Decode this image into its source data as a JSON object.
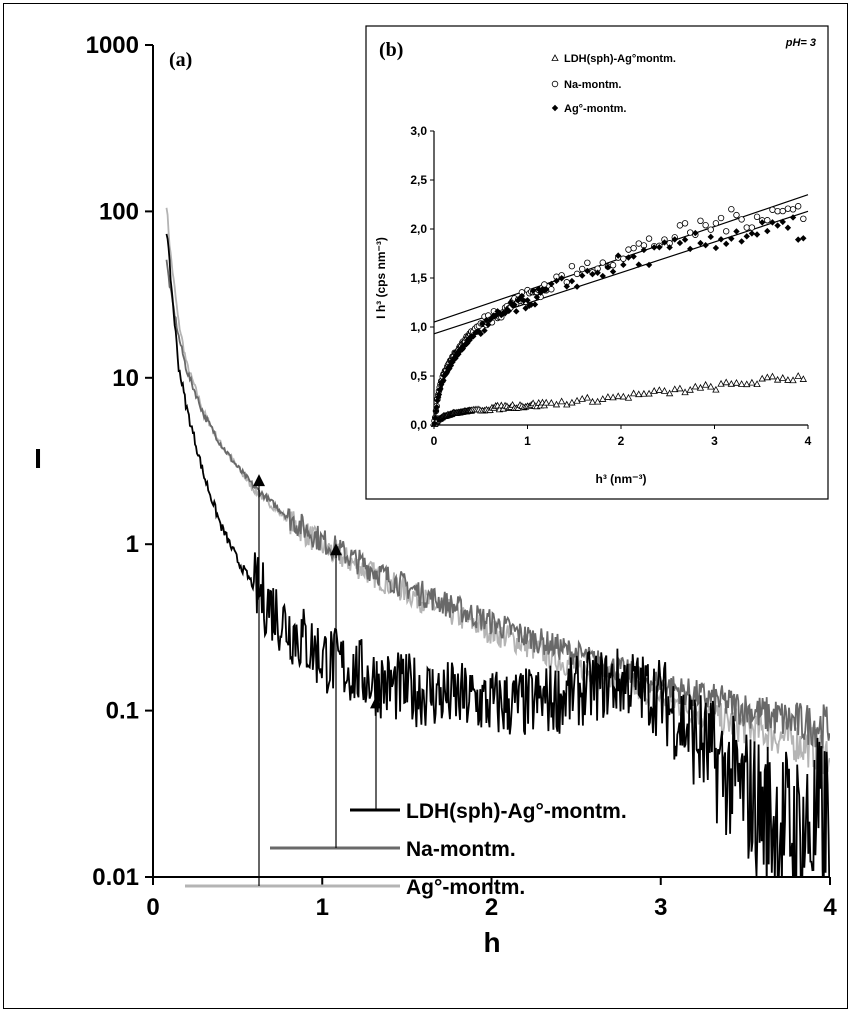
{
  "chart_data": [
    {
      "id": "a",
      "panel_label": "(a)",
      "type": "line",
      "xlabel": "h",
      "ylabel": "I",
      "xlim": [
        0,
        4
      ],
      "ylim": [
        0.01,
        1000
      ],
      "yscale": "log",
      "xticks": [
        "0",
        "1",
        "2",
        "3",
        "4"
      ],
      "yticks": [
        "0.01",
        "0.1",
        "1",
        "10",
        "100",
        "1000"
      ],
      "grid": false,
      "series": [
        {
          "name": "LDH(sph)-Ag°-montm.",
          "color": "#000000",
          "x": [
            0.08,
            0.1,
            0.15,
            0.2,
            0.3,
            0.4,
            0.5,
            0.6,
            0.8,
            1.0,
            1.2,
            1.4,
            1.6,
            1.8,
            2.0,
            2.2,
            2.4,
            2.6,
            2.8,
            3.0,
            3.2,
            3.4,
            3.6,
            3.8,
            4.0
          ],
          "y": [
            78,
            45,
            12,
            6.5,
            2.6,
            1.3,
            0.8,
            0.55,
            0.32,
            0.21,
            0.17,
            0.14,
            0.13,
            0.12,
            0.11,
            0.11,
            0.12,
            0.14,
            0.15,
            0.12,
            0.07,
            0.04,
            0.025,
            0.018,
            0.02
          ]
        },
        {
          "name": "Na-montm.",
          "color": "#696969",
          "x": [
            0.08,
            0.1,
            0.15,
            0.2,
            0.3,
            0.4,
            0.5,
            0.6,
            0.8,
            1.0,
            1.2,
            1.4,
            1.6,
            1.8,
            2.0,
            2.2,
            2.4,
            2.6,
            2.8,
            3.0,
            3.2,
            3.4,
            3.6,
            3.8,
            4.0
          ],
          "y": [
            50,
            35,
            18,
            11,
            6.0,
            4.0,
            2.9,
            2.2,
            1.45,
            1.05,
            0.8,
            0.62,
            0.5,
            0.41,
            0.34,
            0.28,
            0.24,
            0.2,
            0.17,
            0.145,
            0.125,
            0.11,
            0.095,
            0.085,
            0.08
          ]
        },
        {
          "name": "Ag°-montm.",
          "color": "#b4b4b4",
          "x": [
            0.08,
            0.1,
            0.15,
            0.2,
            0.3,
            0.4,
            0.5,
            0.6,
            0.8,
            1.0,
            1.2,
            1.4,
            1.6,
            1.8,
            2.0,
            2.2,
            2.4,
            2.6,
            2.8,
            3.0,
            3.2,
            3.4,
            3.6,
            3.8,
            4.0
          ],
          "y": [
            110,
            60,
            22,
            12,
            6.2,
            4.0,
            2.9,
            2.1,
            1.4,
            0.98,
            0.75,
            0.58,
            0.46,
            0.37,
            0.3,
            0.25,
            0.2,
            0.17,
            0.14,
            0.12,
            0.1,
            0.085,
            0.075,
            0.065,
            0.055
          ]
        }
      ]
    },
    {
      "id": "b",
      "panel_label": "(b)",
      "annotation": "pH= 3",
      "type": "scatter",
      "xlabel": "h³ (nm⁻³)",
      "ylabel": "I h³ (cps nm⁻³)",
      "xlim": [
        0,
        4
      ],
      "ylim": [
        0,
        3
      ],
      "xticks": [
        "0",
        "1",
        "2",
        "3",
        "4"
      ],
      "yticks": [
        "0,0",
        "0,5",
        "1,0",
        "1,5",
        "2,0",
        "2,5",
        "3,0"
      ],
      "grid": false,
      "series": [
        {
          "name": "LDH(sph)-Ag°montm.",
          "marker": "open-triangle",
          "x": [
            0,
            0.05,
            0.1,
            0.2,
            0.4,
            0.6,
            0.8,
            1.0,
            1.5,
            2.0,
            2.5,
            3.0,
            3.5,
            4.0
          ],
          "y": [
            0,
            0.06,
            0.09,
            0.12,
            0.15,
            0.17,
            0.19,
            0.2,
            0.24,
            0.29,
            0.34,
            0.39,
            0.45,
            0.5
          ]
        },
        {
          "name": "Na-montm.",
          "marker": "open-circle",
          "x": [
            0,
            0.05,
            0.1,
            0.2,
            0.4,
            0.6,
            0.8,
            1.0,
            1.5,
            2.0,
            2.5,
            3.0,
            3.5,
            4.0
          ],
          "y": [
            0,
            0.35,
            0.5,
            0.7,
            0.95,
            1.1,
            1.22,
            1.32,
            1.55,
            1.75,
            1.9,
            2.05,
            2.15,
            2.2
          ]
        },
        {
          "name": "Ag°-montm.",
          "marker": "filled-diamond",
          "x": [
            0,
            0.05,
            0.1,
            0.2,
            0.4,
            0.6,
            0.8,
            1.0,
            1.5,
            2.0,
            2.5,
            3.0,
            3.5,
            4.0
          ],
          "y": [
            0,
            0.32,
            0.47,
            0.66,
            0.9,
            1.05,
            1.17,
            1.27,
            1.48,
            1.65,
            1.78,
            1.9,
            1.97,
            2.0
          ]
        }
      ],
      "fit_lines": [
        {
          "x": [
            0,
            4
          ],
          "y": [
            1.05,
            2.35
          ]
        },
        {
          "x": [
            0,
            4
          ],
          "y": [
            0.93,
            2.18
          ]
        }
      ]
    }
  ]
}
